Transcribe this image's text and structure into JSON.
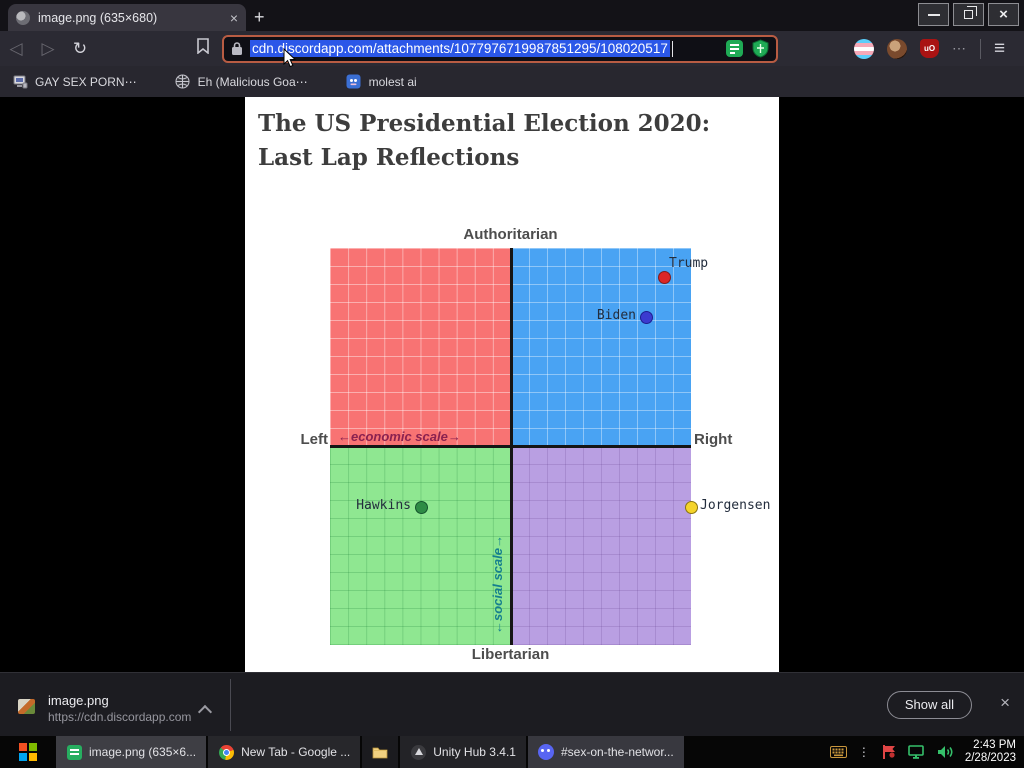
{
  "browser": {
    "tab_title": "image.png (635×680)",
    "nav": {
      "url": "cdn.discordapp.com/attachments/1077976719987851295/108020517"
    },
    "bookmarks": [
      {
        "label": "GAY SEX PORN⋯"
      },
      {
        "label": "Eh (Malicious Goa⋯"
      },
      {
        "label": "molest ai"
      }
    ],
    "downloads": {
      "filename": "image.png",
      "source_url": "https://cdn.discordapp.com",
      "show_all_label": "Show all"
    }
  },
  "icons": {
    "close_glyph": "×",
    "new_tab_glyph": "+",
    "back_glyph": "◁",
    "forward_glyph": "▷",
    "reload_glyph": "↻",
    "overflow_glyph": "⋯",
    "menu_glyph": "≡",
    "ublock_text": "uO",
    "hidden_icons_glyph": "⋮"
  },
  "image_page": {
    "title_line1": "The US Presidential Election 2020:",
    "title_line2": "Last Lap Reflections"
  },
  "chart_data": {
    "type": "scatter",
    "title": "The US Presidential Election 2020: Last Lap Reflections",
    "top_label": "Authoritarian",
    "bottom_label": "Libertarian",
    "left_label": "Left",
    "right_label": "Right",
    "x_axis_annotation": "←economic scale→",
    "y_axis_annotation": "←social scale→",
    "xlim": [
      -10,
      10
    ],
    "ylim": [
      -10,
      10
    ],
    "grid": true,
    "legend": false,
    "quadrant_colors": {
      "top_left": "#f87373",
      "top_right": "#49a3f3",
      "bottom_left": "#8fe791",
      "bottom_right": "#b99fe2"
    },
    "points": [
      {
        "name": "Trump",
        "x": 8.5,
        "y": 8.5,
        "color": "#dc2626",
        "border": "#7f1d1d",
        "label_side": "top-right"
      },
      {
        "name": "Biden",
        "x": 7.5,
        "y": 6.5,
        "color": "#3b3bd0",
        "border": "#1e1e8f",
        "label_side": "left"
      },
      {
        "name": "Hawkins",
        "x": -5.0,
        "y": -3.1,
        "color": "#2e8b45",
        "border": "#14532d",
        "label_side": "left"
      },
      {
        "name": "Jorgensen",
        "x": 10.0,
        "y": -3.1,
        "color": "#f5d42b",
        "border": "#8a7410",
        "label_side": "right"
      }
    ]
  },
  "taskbar": {
    "apps": [
      {
        "label": "image.png (635×6..."
      },
      {
        "label": "New Tab - Google ..."
      },
      {
        "label": "Unity Hub 3.4.1"
      },
      {
        "label": "#sex-on-the-networ..."
      }
    ],
    "clock_time": "2:43 PM",
    "clock_date": "2/28/2023"
  }
}
